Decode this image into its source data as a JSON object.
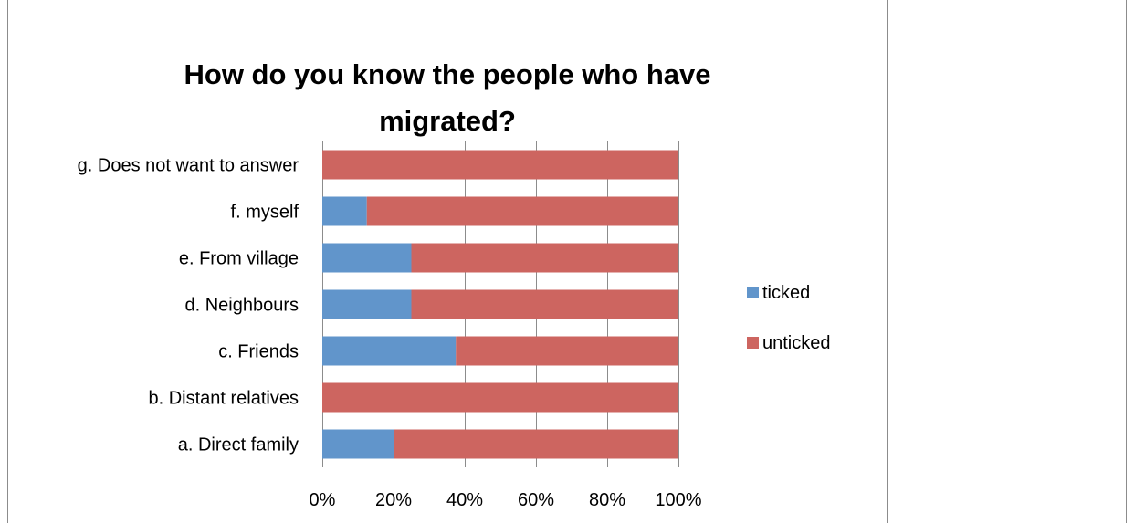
{
  "chart_data": {
    "type": "bar",
    "orientation": "horizontal",
    "stacked": "percent",
    "title_lines": [
      "How do you know the people who have",
      "migrated?"
    ],
    "categories": [
      "a. Direct family",
      "b. Distant relatives",
      "c. Friends",
      "d. Neighbours",
      "e. From village",
      "f. myself",
      "g. Does not want to answer"
    ],
    "series": [
      {
        "name": "ticked",
        "color": "#6195cb",
        "values": [
          20,
          0,
          37.5,
          25,
          25,
          12.5,
          0
        ]
      },
      {
        "name": "unticked",
        "color": "#cd6560",
        "values": [
          80,
          100,
          62.5,
          75,
          75,
          87.5,
          100
        ]
      }
    ],
    "x_ticks": [
      "0%",
      "20%",
      "40%",
      "60%",
      "80%",
      "100%"
    ],
    "xlim": [
      0,
      100
    ],
    "grid": "vertical",
    "legend_position": "right"
  }
}
